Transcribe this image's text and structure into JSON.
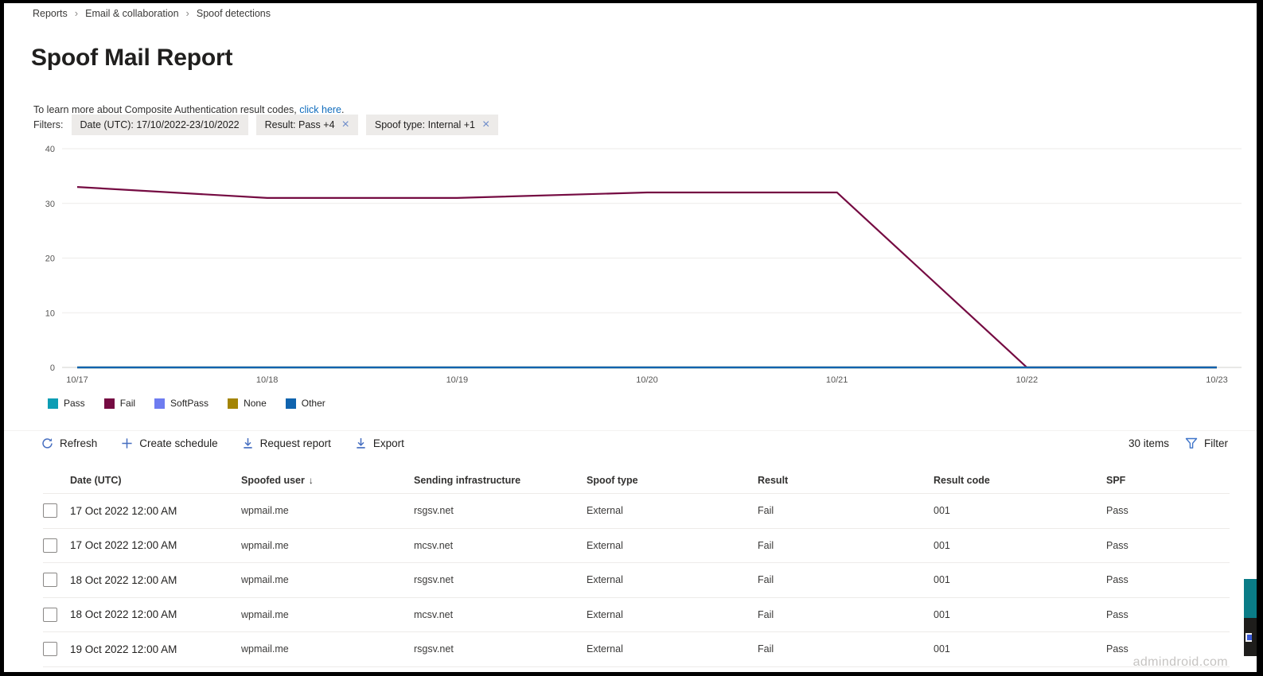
{
  "breadcrumb": {
    "items": [
      "Reports",
      "Email & collaboration",
      "Spoof detections"
    ]
  },
  "icons": {
    "breadcrumb_separator": "›",
    "dismiss": "×",
    "sort_desc": "↓"
  },
  "page": {
    "title": "Spoof Mail Report"
  },
  "info": {
    "text_before": "To learn more about Composite Authentication result codes, ",
    "link": "click here",
    "text_after": "."
  },
  "filters": {
    "label": "Filters:",
    "chips": [
      {
        "label": "Date (UTC): 17/10/2022-23/10/2022",
        "dismissible": false
      },
      {
        "label": "Result: Pass +4",
        "dismissible": true
      },
      {
        "label": "Spoof type: Internal +1",
        "dismissible": true
      }
    ]
  },
  "chart_data": {
    "type": "line",
    "x": [
      "10/17",
      "10/18",
      "10/19",
      "10/20",
      "10/21",
      "10/22",
      "10/23"
    ],
    "series": [
      {
        "name": "Pass",
        "color": "#0d9db4",
        "values": [
          0,
          0,
          0,
          0,
          0,
          0,
          0
        ]
      },
      {
        "name": "Fail",
        "color": "#750b42",
        "values": [
          33,
          31,
          31,
          32,
          32,
          0,
          0
        ]
      },
      {
        "name": "SoftPass",
        "color": "#6e7cf0",
        "values": [
          0,
          0,
          0,
          0,
          0,
          0,
          0
        ]
      },
      {
        "name": "None",
        "color": "#a38403",
        "values": [
          0,
          0,
          0,
          0,
          0,
          0,
          0
        ]
      },
      {
        "name": "Other",
        "color": "#0f63ae",
        "values": [
          0,
          0,
          0,
          0,
          0,
          0,
          0
        ]
      }
    ],
    "ylim": [
      0,
      40
    ],
    "yticks": [
      0,
      10,
      20,
      30,
      40
    ],
    "grid": true,
    "legend_position": "bottom",
    "title": "",
    "xlabel": "",
    "ylabel": ""
  },
  "legend": [
    {
      "label": "Pass",
      "color": "#0d9db4"
    },
    {
      "label": "Fail",
      "color": "#750b42"
    },
    {
      "label": "SoftPass",
      "color": "#6e7cf0"
    },
    {
      "label": "None",
      "color": "#a38403"
    },
    {
      "label": "Other",
      "color": "#0f63ae"
    }
  ],
  "toolbar": {
    "refresh": "Refresh",
    "create_schedule": "Create schedule",
    "request_report": "Request report",
    "export": "Export",
    "items_count": "30 items",
    "filter": "Filter"
  },
  "table": {
    "columns": [
      "Date (UTC)",
      "Spoofed user",
      "Sending infrastructure",
      "Spoof type",
      "Result",
      "Result code",
      "SPF"
    ],
    "sorted_column": "Spoofed user",
    "rows": [
      [
        "17 Oct 2022 12:00 AM",
        "wpmail.me",
        "rsgsv.net",
        "External",
        "Fail",
        "001",
        "Pass"
      ],
      [
        "17 Oct 2022 12:00 AM",
        "wpmail.me",
        "mcsv.net",
        "External",
        "Fail",
        "001",
        "Pass"
      ],
      [
        "18 Oct 2022 12:00 AM",
        "wpmail.me",
        "rsgsv.net",
        "External",
        "Fail",
        "001",
        "Pass"
      ],
      [
        "18 Oct 2022 12:00 AM",
        "wpmail.me",
        "mcsv.net",
        "External",
        "Fail",
        "001",
        "Pass"
      ],
      [
        "19 Oct 2022 12:00 AM",
        "wpmail.me",
        "rsgsv.net",
        "External",
        "Fail",
        "001",
        "Pass"
      ]
    ]
  },
  "watermark": "admindroid.com"
}
